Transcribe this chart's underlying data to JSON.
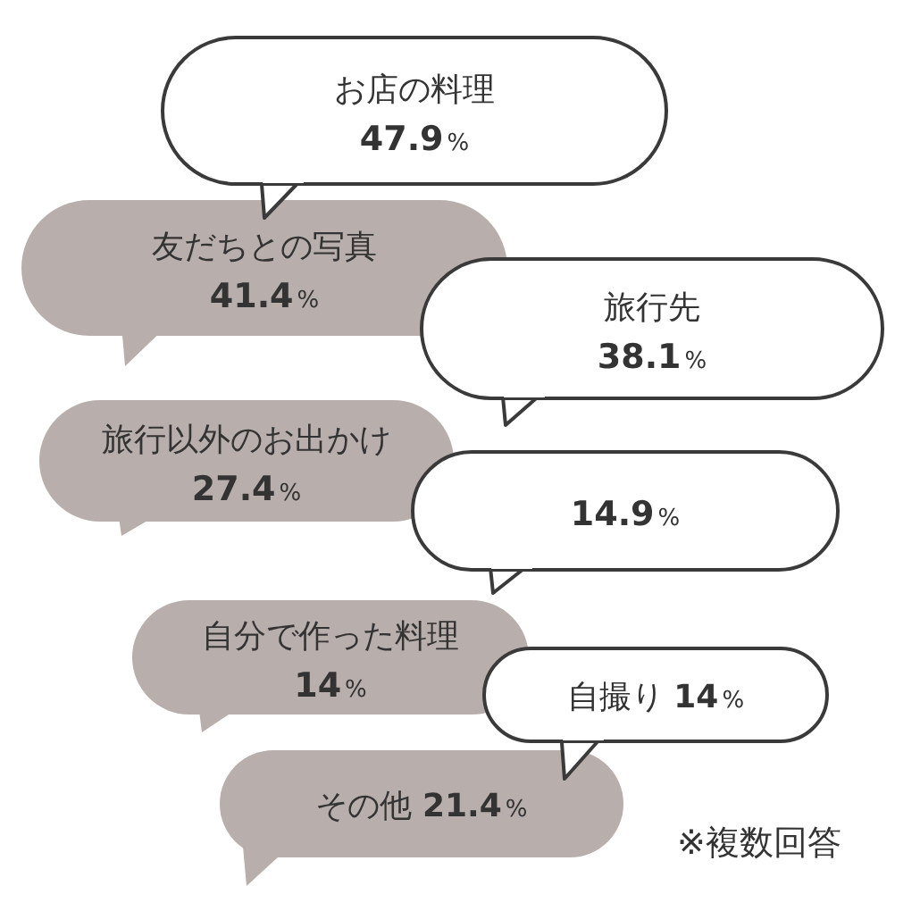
{
  "chart_data": {
    "type": "other",
    "categories": [
      "お店の料理",
      "友だちとの写真",
      "旅行先",
      "旅行以外のお出かけ",
      null,
      "自分で作った料理",
      "自撮り",
      "その他"
    ],
    "values": [
      47.9,
      41.4,
      38.1,
      27.4,
      14.9,
      14,
      14,
      21.4
    ],
    "value_labels": [
      "47.9%",
      "41.4%",
      "38.1%",
      "27.4%",
      "14.9%",
      "14%",
      "14%",
      "21.4%"
    ],
    "colors": [
      "#ffffff",
      "#b8aeab",
      "#ffffff",
      "#b8aeab",
      "#ffffff",
      "#b8aeab",
      "#ffffff",
      "#b8aeab"
    ],
    "annotations": [
      "※複数回答"
    ]
  }
}
